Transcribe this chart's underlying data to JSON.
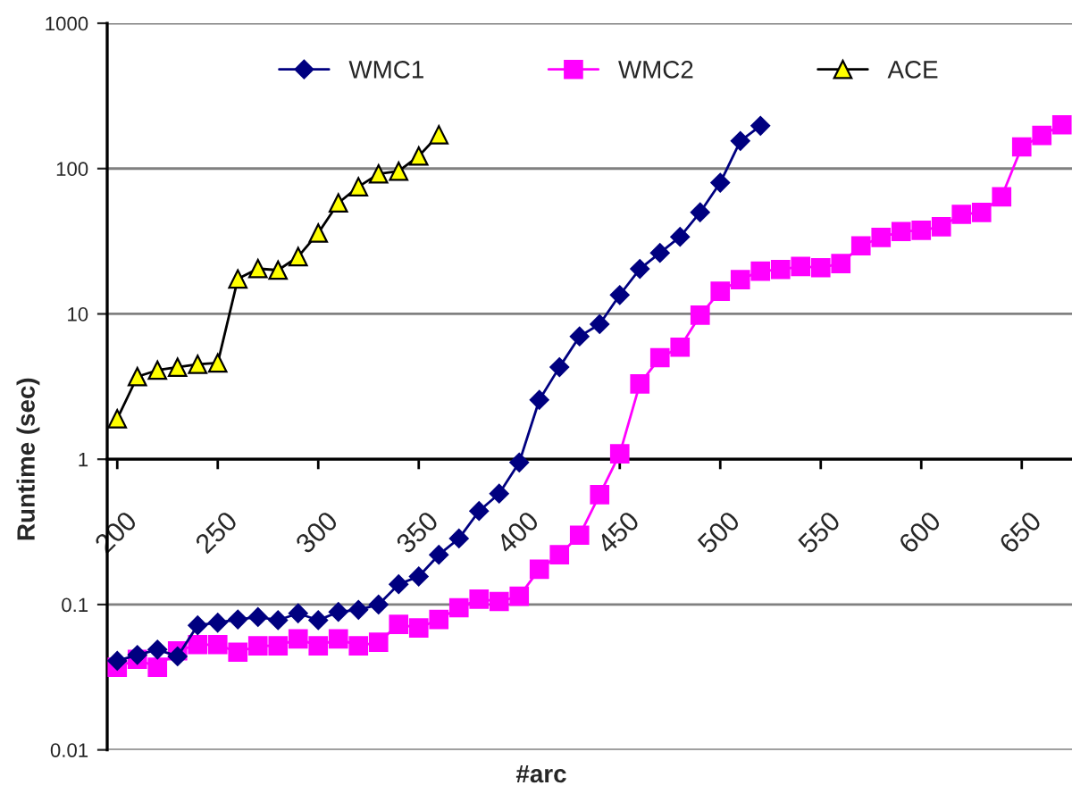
{
  "chart_data": {
    "type": "line",
    "xlabel": "#arc",
    "ylabel": "Runtime (sec)",
    "log": "y",
    "grid": "y",
    "legend": "top",
    "xlim": [
      195,
      675
    ],
    "ylim": [
      0.01,
      1000
    ],
    "xticks": [
      200,
      250,
      300,
      350,
      400,
      450,
      500,
      550,
      600,
      650
    ],
    "yticks": [
      0.01,
      0.1,
      1,
      10,
      100,
      1000
    ],
    "series": [
      {
        "name": "WMC1",
        "color": "#000080",
        "marker": "diamond",
        "x": [
          200,
          210,
          220,
          230,
          240,
          250,
          260,
          270,
          280,
          290,
          300,
          310,
          320,
          330,
          340,
          350,
          360,
          370,
          380,
          390,
          400,
          410,
          420,
          430,
          440,
          450,
          460,
          470,
          480,
          490,
          500,
          510,
          520
        ],
        "values": [
          0.041,
          0.045,
          0.049,
          0.044,
          0.072,
          0.075,
          0.079,
          0.082,
          0.078,
          0.087,
          0.078,
          0.089,
          0.092,
          0.1,
          0.138,
          0.156,
          0.22,
          0.285,
          0.44,
          0.58,
          0.95,
          2.56,
          4.3,
          7.0,
          8.5,
          13.5,
          20.4,
          26.3,
          33.9,
          50,
          80,
          155,
          197
        ]
      },
      {
        "name": "WMC2",
        "color": "#ff00ff",
        "marker": "square",
        "x": [
          200,
          210,
          220,
          230,
          240,
          250,
          260,
          270,
          280,
          290,
          300,
          310,
          320,
          330,
          340,
          350,
          360,
          370,
          380,
          390,
          400,
          410,
          420,
          430,
          440,
          450,
          460,
          470,
          480,
          490,
          500,
          510,
          520,
          530,
          540,
          550,
          560,
          570,
          580,
          590,
          600,
          610,
          620,
          630,
          640,
          650,
          660,
          670
        ],
        "values": [
          0.037,
          0.042,
          0.037,
          0.048,
          0.053,
          0.053,
          0.047,
          0.052,
          0.052,
          0.058,
          0.052,
          0.058,
          0.052,
          0.055,
          0.073,
          0.069,
          0.079,
          0.095,
          0.109,
          0.105,
          0.114,
          0.175,
          0.22,
          0.3,
          0.57,
          1.09,
          3.3,
          5.0,
          5.9,
          9.8,
          14.3,
          17.2,
          19.7,
          20.2,
          21.2,
          20.8,
          22.2,
          29.4,
          33.6,
          36.9,
          37.6,
          39.8,
          48.4,
          49.9,
          64,
          141,
          169,
          200
        ]
      },
      {
        "name": "ACE",
        "color": "#ffff00",
        "marker": "triangle",
        "x": [
          200,
          210,
          220,
          230,
          240,
          250,
          260,
          270,
          280,
          290,
          300,
          310,
          320,
          330,
          340,
          350,
          360
        ],
        "values": [
          1.9,
          3.7,
          4.1,
          4.3,
          4.5,
          4.6,
          17.4,
          20.5,
          20,
          24.8,
          36,
          58,
          75,
          92,
          96,
          122,
          171
        ]
      }
    ]
  }
}
